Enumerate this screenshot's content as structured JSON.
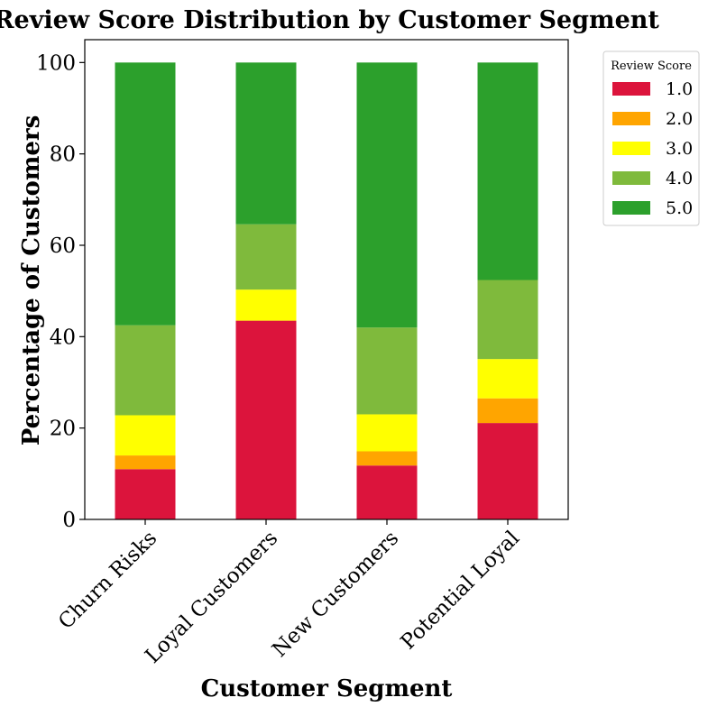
{
  "chart_data": {
    "type": "bar",
    "stacked": true,
    "title": "Review Score Distribution by Customer Segment",
    "xlabel": "Customer Segment",
    "ylabel": "Percentage of Customers",
    "categories": [
      "Churn Risks",
      "Loyal Customers",
      "New Customers",
      "Potential Loyal"
    ],
    "ylim": [
      0,
      105
    ],
    "yticks": [
      "0",
      "20",
      "40",
      "60",
      "80",
      "100"
    ],
    "legend": {
      "title": "Review Score",
      "position": "upper-right-outside"
    },
    "series": [
      {
        "name": "1.0",
        "color": "#dc143c",
        "values": [
          11.0,
          43.5,
          11.8,
          21.1
        ]
      },
      {
        "name": "2.0",
        "color": "#ffa500",
        "values": [
          3.0,
          0.0,
          3.1,
          5.4
        ]
      },
      {
        "name": "3.0",
        "color": "#ffff00",
        "values": [
          8.8,
          6.8,
          8.1,
          8.6
        ]
      },
      {
        "name": "4.0",
        "color": "#7fba3c",
        "values": [
          19.7,
          14.3,
          19.0,
          17.3
        ]
      },
      {
        "name": "5.0",
        "color": "#2ca02c",
        "values": [
          57.5,
          35.4,
          58.0,
          47.6
        ]
      }
    ]
  }
}
